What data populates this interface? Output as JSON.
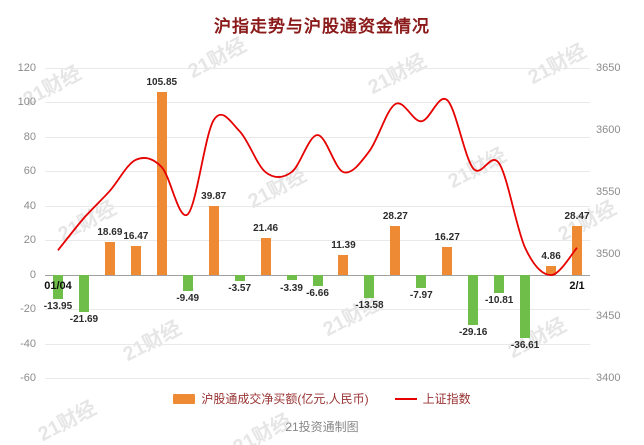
{
  "title": "沪指走势与沪股通资金情况",
  "footer": "21投资通制图",
  "watermark": "21财经",
  "legend": {
    "bar_label": "沪股通成交净买额(亿元,人民币)",
    "line_label": "上证指数"
  },
  "colors": {
    "bar_positive": "#ED8A33",
    "bar_negative": "#6FBE4A",
    "line": "#E60000",
    "title": "#8B1A1A",
    "legend_text": "#993333",
    "axis_text": "#8C8C8C"
  },
  "chart_data": {
    "type": "bar+line",
    "title": "沪指走势与沪股通资金情况",
    "x_labels_visible": [
      "01/04",
      "2/1"
    ],
    "bar_series": {
      "name": "沪股通成交净买额(亿元,人民币)",
      "values": [
        -13.95,
        -21.69,
        18.69,
        16.47,
        105.85,
        -9.49,
        39.87,
        -3.57,
        21.46,
        -3.39,
        -6.66,
        11.39,
        -13.58,
        28.27,
        -7.97,
        16.27,
        -29.16,
        -10.81,
        -36.61,
        4.86,
        28.47
      ]
    },
    "line_series": {
      "name": "上证指数",
      "values_estimated_from_gridlines": [
        3503,
        3529,
        3551,
        3576,
        3570,
        3532,
        3608,
        3599,
        3566,
        3566,
        3596,
        3566,
        3583,
        3621,
        3607,
        3624,
        3569,
        3573,
        3505,
        3483,
        3505
      ]
    },
    "left_axis": {
      "ticks": [
        120,
        100,
        80,
        60,
        40,
        20,
        0,
        -20,
        -40,
        -60
      ],
      "range": [
        -60,
        120
      ]
    },
    "right_axis": {
      "ticks": [
        3650,
        3600,
        3550,
        3500,
        3450,
        3400
      ],
      "range": [
        3400,
        3650
      ]
    },
    "grid": true,
    "legend_position": "bottom"
  }
}
